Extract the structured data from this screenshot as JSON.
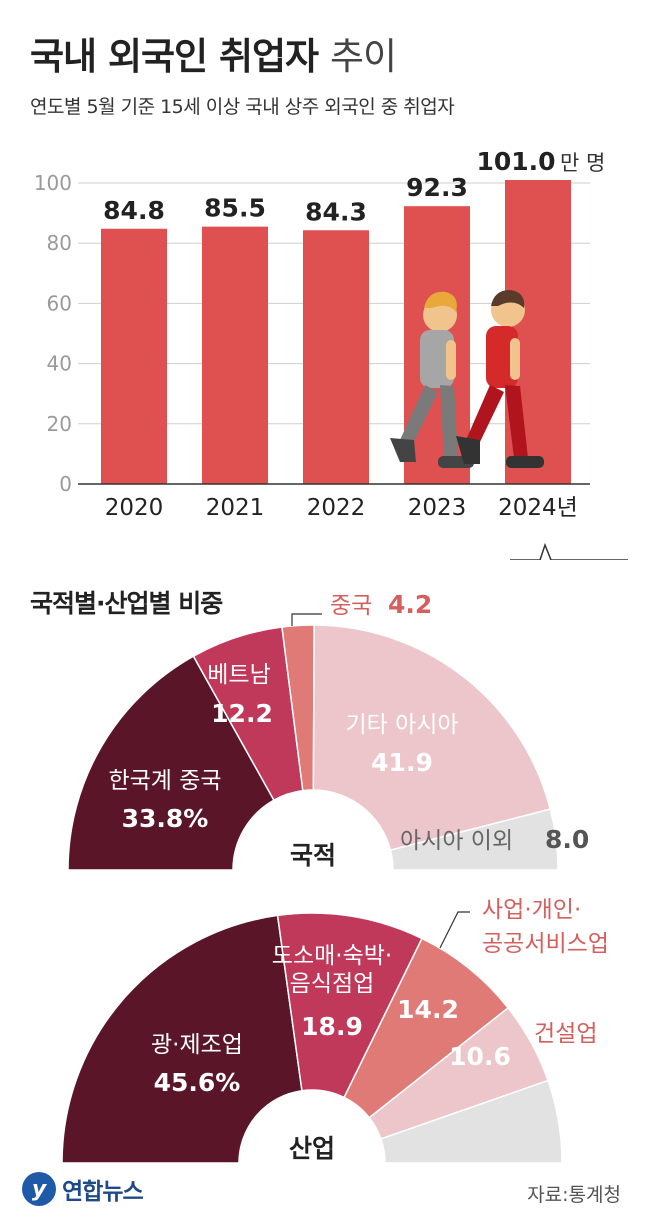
{
  "header": {
    "title_main": "국내 외국인 취업자",
    "title_light": "추이",
    "subtitle": "연도별 5월 기준 15세 이상 국내 상주 외국인 중 취업자"
  },
  "section2_title": "국적별·산업별 비중",
  "footer": {
    "logo_text": "연합뉴스",
    "source": "자료:통계청"
  },
  "colors": {
    "bar": "#de5150",
    "dark": "#5a1628",
    "crimson": "#c0395a",
    "coral": "#e07a76",
    "pink": "#ecc6cb",
    "gray": "#e2e2e2"
  },
  "chart_data": [
    {
      "type": "bar",
      "title": "국내 외국인 취업자 추이",
      "categories": [
        "2020",
        "2021",
        "2022",
        "2023",
        "2024년"
      ],
      "values": [
        84.8,
        85.5,
        84.3,
        92.3,
        101.0
      ],
      "value_labels": [
        "84.8",
        "85.5",
        "84.3",
        "92.3",
        "101.0"
      ],
      "unit": "만 명",
      "ylim": [
        0,
        100
      ],
      "yticks": [
        0,
        20,
        40,
        60,
        80,
        100
      ],
      "grid": true
    },
    {
      "type": "pie",
      "title": "국적",
      "slices": [
        {
          "label": "한국계 중국",
          "value": 33.8,
          "value_label": "33.8%",
          "color": "#5a1628"
        },
        {
          "label": "베트남",
          "value": 12.2,
          "value_label": "12.2",
          "color": "#c0395a"
        },
        {
          "label": "중국",
          "value": 4.2,
          "value_label": "4.2",
          "color": "#e07a76"
        },
        {
          "label": "기타 아시아",
          "value": 41.9,
          "value_label": "41.9",
          "color": "#ecc6cb"
        },
        {
          "label": "아시아 이외",
          "value": 8.0,
          "value_label": "8.0",
          "color": "#e2e2e2"
        }
      ]
    },
    {
      "type": "pie",
      "title": "산업",
      "slices": [
        {
          "label": "광·제조업",
          "value": 45.6,
          "value_label": "45.6%",
          "color": "#5a1628"
        },
        {
          "label": "도소매·숙박·음식점업",
          "value": 18.9,
          "value_label": "18.9",
          "color": "#c0395a"
        },
        {
          "label": "사업·개인·공공서비스업",
          "value": 14.2,
          "value_label": "14.2",
          "color": "#e07a76"
        },
        {
          "label": "건설업",
          "value": 10.6,
          "value_label": "10.6",
          "color": "#ecc6cb"
        },
        {
          "label": "",
          "value": 10.7,
          "value_label": "",
          "color": "#e2e2e2"
        }
      ]
    }
  ]
}
